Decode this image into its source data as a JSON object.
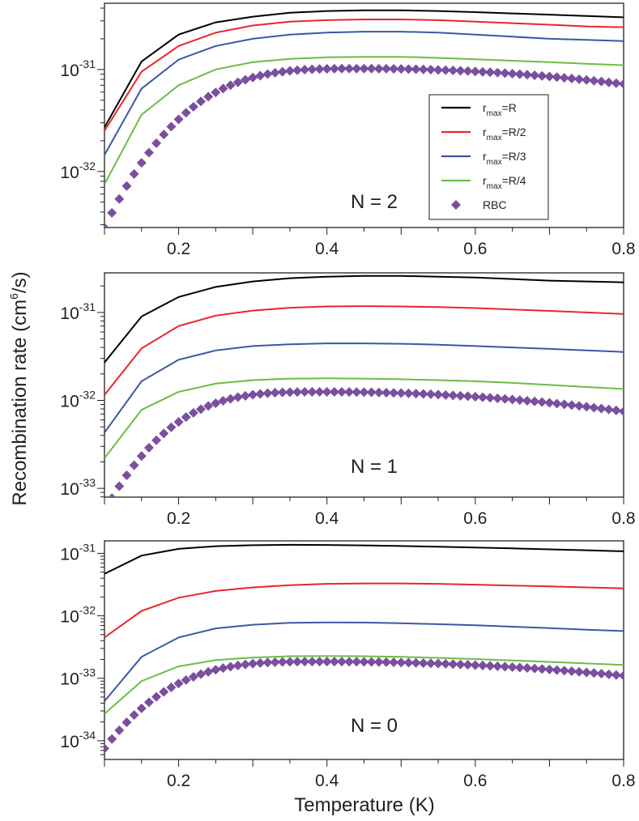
{
  "colors": {
    "rmax_R": "#000000",
    "rmax_R2": "#e8262b",
    "rmax_R3": "#3b57a5",
    "rmax_R4": "#6cbd45",
    "RBC": "#7a4f9e",
    "axis": "#231f20"
  },
  "chart_data": {
    "type": "line",
    "xlabel": "Temperature (K)",
    "ylabel": "Recombination rate (cm^6/s)",
    "ylabel_base": "Recombination rate (cm",
    "ylabel_exp": "6",
    "ylabel_tail": "/s)",
    "xlim": [
      0.1,
      0.8
    ],
    "x_ticks": [
      "0.2",
      "0.4",
      "0.6",
      "0.8"
    ],
    "x_tick_values": [
      0.2,
      0.4,
      0.6,
      0.8
    ],
    "y_scale": "log",
    "legend": {
      "placement": "inside-right of top panel",
      "entries": [
        {
          "base": "r",
          "sub": "max",
          "suffix": "=R",
          "key": "rmax_R"
        },
        {
          "base": "r",
          "sub": "max",
          "suffix": "=R/2",
          "key": "rmax_R2"
        },
        {
          "base": "r",
          "sub": "max",
          "suffix": "=R/3",
          "key": "rmax_R3"
        },
        {
          "base": "r",
          "sub": "max",
          "suffix": "=R/4",
          "key": "rmax_R4"
        },
        {
          "base": "RBC",
          "sub": "",
          "suffix": "",
          "key": "RBC"
        }
      ]
    },
    "line_x": [
      0.1,
      0.15,
      0.2,
      0.25,
      0.3,
      0.35,
      0.4,
      0.45,
      0.5,
      0.55,
      0.6,
      0.65,
      0.7,
      0.75,
      0.8
    ],
    "panels": [
      {
        "label": "N = 2",
        "ylim_exp": [
          -32.55,
          -30.35
        ],
        "y_ticks": [
          {
            "base": "10",
            "exp": "-31",
            "value": -31
          },
          {
            "base": "10",
            "exp": "-32",
            "value": -32
          }
        ],
        "series": [
          {
            "key": "rmax_R",
            "values": [
              2.7e-32,
              1.2e-31,
              2.2e-31,
              2.9e-31,
              3.3e-31,
              3.6e-31,
              3.75e-31,
              3.8e-31,
              3.8e-31,
              3.75e-31,
              3.65e-31,
              3.55e-31,
              3.45e-31,
              3.35e-31,
              3.25e-31
            ]
          },
          {
            "key": "rmax_R2",
            "values": [
              2.5e-32,
              9.5e-32,
              1.7e-31,
              2.3e-31,
              2.7e-31,
              2.95e-31,
              3.05e-31,
              3.1e-31,
              3.1e-31,
              3.05e-31,
              2.95e-31,
              2.85e-31,
              2.75e-31,
              2.65e-31,
              2.6e-31
            ]
          },
          {
            "key": "rmax_R3",
            "values": [
              1.45e-32,
              6.5e-32,
              1.25e-31,
              1.7e-31,
              2e-31,
              2.2e-31,
              2.3e-31,
              2.35e-31,
              2.35e-31,
              2.3e-31,
              2.2e-31,
              2.1e-31,
              2e-31,
              1.95e-31,
              1.9e-31
            ]
          },
          {
            "key": "rmax_R4",
            "values": [
              7.5e-33,
              3.6e-32,
              7e-32,
              1e-31,
              1.18e-31,
              1.27e-31,
              1.32e-31,
              1.33e-31,
              1.33e-31,
              1.3e-31,
              1.26e-31,
              1.22e-31,
              1.18e-31,
              1.14e-31,
              1.1e-31
            ]
          }
        ],
        "rbc": {
          "x_start": 0.1,
          "x_step": 0.01,
          "peak_x": 0.45,
          "peak": 1.02e-31,
          "start": 2.8e-33,
          "end": 7.2e-32
        }
      },
      {
        "label": "N = 1",
        "ylim_exp": [
          -33.1,
          -30.55
        ],
        "y_ticks": [
          {
            "base": "10",
            "exp": "-31",
            "value": -31
          },
          {
            "base": "10",
            "exp": "-32",
            "value": -32
          },
          {
            "base": "10",
            "exp": "-33",
            "value": -33
          }
        ],
        "series": [
          {
            "key": "rmax_R",
            "values": [
              2.7e-32,
              9e-32,
              1.5e-31,
              1.95e-31,
              2.25e-31,
              2.45e-31,
              2.55e-31,
              2.6e-31,
              2.6e-31,
              2.55e-31,
              2.5e-31,
              2.4e-31,
              2.3e-31,
              2.25e-31,
              2.2e-31
            ]
          },
          {
            "key": "rmax_R2",
            "values": [
              1.15e-32,
              3.9e-32,
              7e-32,
              9.2e-32,
              1.05e-31,
              1.13e-31,
              1.17e-31,
              1.18e-31,
              1.17e-31,
              1.15e-31,
              1.12e-31,
              1.08e-31,
              1.04e-31,
              1e-31,
              9.6e-32
            ]
          },
          {
            "key": "rmax_R3",
            "values": [
              4.3e-33,
              1.65e-32,
              2.9e-32,
              3.7e-32,
              4.15e-32,
              4.35e-32,
              4.45e-32,
              4.45e-32,
              4.4e-32,
              4.3e-32,
              4.15e-32,
              4e-32,
              3.85e-32,
              3.7e-32,
              3.55e-32
            ]
          },
          {
            "key": "rmax_R4",
            "values": [
              2.2e-33,
              7.8e-33,
              1.25e-32,
              1.55e-32,
              1.7e-32,
              1.77e-32,
              1.78e-32,
              1.77e-32,
              1.74e-32,
              1.7e-32,
              1.65e-32,
              1.58e-32,
              1.5e-32,
              1.42e-32,
              1.35e-32
            ]
          }
        ],
        "rbc": {
          "x_start": 0.1,
          "x_step": 0.01,
          "peak_x": 0.4,
          "peak": 1.25e-32,
          "start": 5.5e-34,
          "end": 7.5e-33
        }
      },
      {
        "label": "N = 0",
        "ylim_exp": [
          -34.3,
          -30.8
        ],
        "y_ticks": [
          {
            "base": "10",
            "exp": "-31",
            "value": -31
          },
          {
            "base": "10",
            "exp": "-32",
            "value": -32
          },
          {
            "base": "10",
            "exp": "-33",
            "value": -33
          },
          {
            "base": "10",
            "exp": "-34",
            "value": -34
          }
        ],
        "series": [
          {
            "key": "rmax_R",
            "values": [
              4.7e-32,
              9.2e-32,
              1.18e-31,
              1.3e-31,
              1.35e-31,
              1.37e-31,
              1.36e-31,
              1.34e-31,
              1.31e-31,
              1.28e-31,
              1.24e-31,
              1.2e-31,
              1.16e-31,
              1.12e-31,
              1.08e-31
            ]
          },
          {
            "key": "rmax_R2",
            "values": [
              4.5e-33,
              1.2e-32,
              1.95e-32,
              2.5e-32,
              2.85e-32,
              3.1e-32,
              3.25e-32,
              3.3e-32,
              3.3e-32,
              3.25e-32,
              3.15e-32,
              3.05e-32,
              2.95e-32,
              2.85e-32,
              2.75e-32
            ]
          },
          {
            "key": "rmax_R3",
            "values": [
              4.3e-34,
              2.2e-33,
              4.5e-33,
              6.3e-33,
              7.2e-33,
              7.7e-33,
              7.85e-33,
              7.8e-33,
              7.6e-33,
              7.35e-33,
              7.05e-33,
              6.7e-33,
              6.35e-33,
              6e-33,
              5.7e-33
            ]
          },
          {
            "key": "rmax_R4",
            "values": [
              2.7e-34,
              9e-34,
              1.55e-33,
              1.95e-33,
              2.15e-33,
              2.25e-33,
              2.27e-33,
              2.25e-33,
              2.2e-33,
              2.12e-33,
              2.03e-33,
              1.93e-33,
              1.83e-33,
              1.73e-33,
              1.63e-33
            ]
          }
        ],
        "rbc": {
          "x_start": 0.1,
          "x_step": 0.01,
          "peak_x": 0.4,
          "peak": 1.85e-33,
          "start": 7.5e-35,
          "end": 1.1e-33
        }
      }
    ]
  }
}
